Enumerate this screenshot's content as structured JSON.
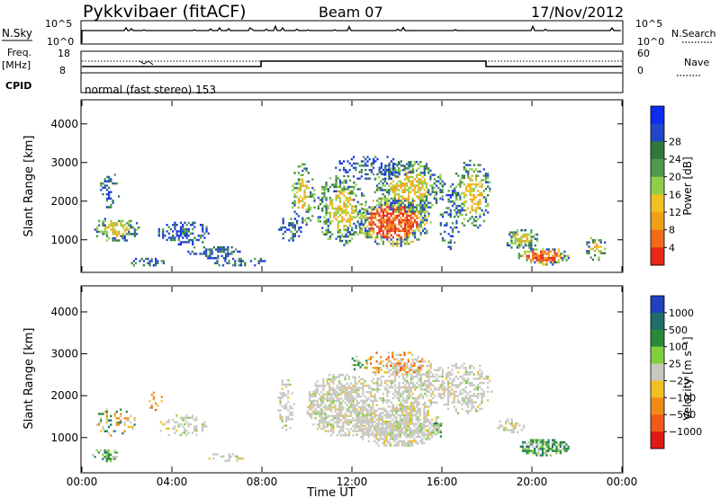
{
  "header": {
    "station": "Pykkvibaer (fitACF)",
    "beam": "Beam 07",
    "date": "17/Nov/2012"
  },
  "panels": {
    "nsky": {
      "label": "N.Sky",
      "left_ticks": [
        "10^5",
        "10^0"
      ],
      "right_ticks": [
        "10^5",
        "10^0"
      ],
      "right_label": "N.Search"
    },
    "freq": {
      "label_lines": [
        "Freq.",
        "[MHz]"
      ],
      "left_ticks": [
        "18",
        "8"
      ],
      "right_ticks": [
        "60",
        "0"
      ],
      "right_label": "Nave"
    },
    "cpid": {
      "label": "CPID",
      "value": "normal (fast stereo) 153"
    }
  },
  "chart_data": [
    {
      "type": "heatmap",
      "id": "power",
      "ylabel": "Slant Range [km]",
      "yticks": [
        "1000",
        "2000",
        "3000",
        "4000"
      ],
      "ylim": [
        180,
        4600
      ],
      "colorbar": {
        "label": "Power [dB]",
        "ticks": [
          "4",
          "8",
          "12",
          "16",
          "20",
          "24",
          "28"
        ],
        "colors": [
          "#0c2cf0",
          "#2346c8",
          "#2f7a3a",
          "#4f9a4a",
          "#8fcf4a",
          "#f0c020",
          "#f0a018",
          "#f06a18",
          "#e82818"
        ]
      }
    },
    {
      "type": "heatmap",
      "id": "velocity",
      "ylabel": "Slant Range [km]",
      "yticks": [
        "1000",
        "2000",
        "3000",
        "4000"
      ],
      "ylim": [
        180,
        4600
      ],
      "colorbar": {
        "label": "Velocity [m s⁻¹]",
        "ticks": [
          "1000",
          "500",
          "100",
          "25",
          "−25",
          "−100",
          "−500",
          "−1000"
        ],
        "colors": [
          "#2040c0",
          "#1f6e6a",
          "#2a8a3a",
          "#7fcf3f",
          "#c8c8c0",
          "#f0c020",
          "#f08a18",
          "#f05a18",
          "#e01818"
        ]
      }
    }
  ],
  "x_axis": {
    "label": "Time UT",
    "ticks": [
      "00:00",
      "04:00",
      "08:00",
      "12:00",
      "16:00",
      "20:00",
      "00:00"
    ]
  }
}
